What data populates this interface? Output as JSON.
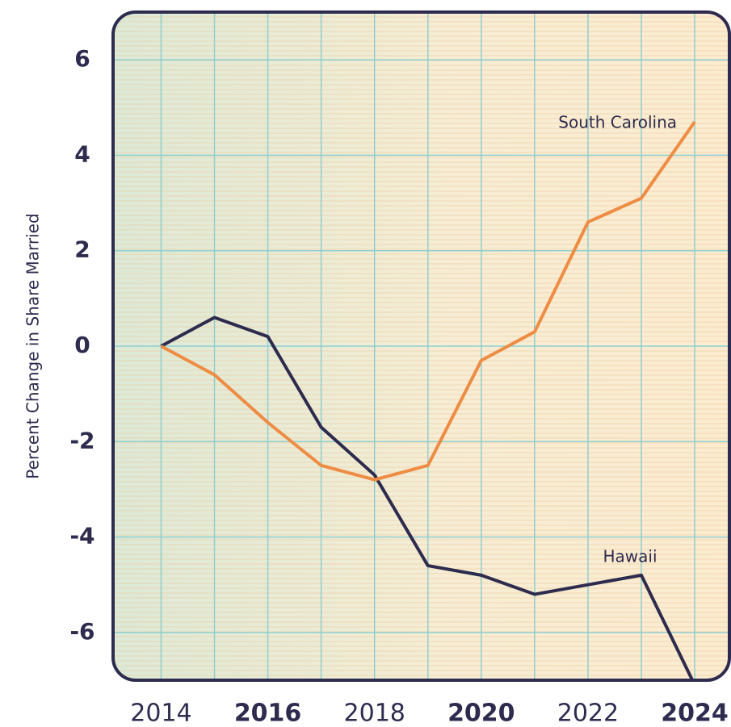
{
  "chart_data": {
    "type": "line",
    "y_label": "Percent Change in Share Married",
    "x": [
      2014,
      2015,
      2016,
      2017,
      2018,
      2019,
      2020,
      2021,
      2022,
      2023,
      2024
    ],
    "series": [
      {
        "name": "Hawaii",
        "color": "#2d2b4e",
        "values": [
          0,
          0.6,
          0.2,
          -1.7,
          -2.7,
          -4.6,
          -4.8,
          -5.2,
          -5.0,
          -4.8,
          -7.1
        ]
      },
      {
        "name": "South Carolina",
        "color": "#ee8c44",
        "values": [
          0,
          -0.6,
          -1.6,
          -2.5,
          -2.8,
          -2.5,
          -0.3,
          0.3,
          2.6,
          3.1,
          4.7
        ]
      }
    ],
    "xlim": [
      2013.1,
      2024.65
    ],
    "ylim": [
      -7,
      7
    ],
    "xticks": [
      2014,
      2016,
      2018,
      2020,
      2022,
      2024
    ],
    "bold_xticks": [
      2016,
      2020,
      2024
    ],
    "yticks": [
      -6,
      -4,
      -2,
      0,
      2,
      4,
      6
    ],
    "grid": true
  }
}
